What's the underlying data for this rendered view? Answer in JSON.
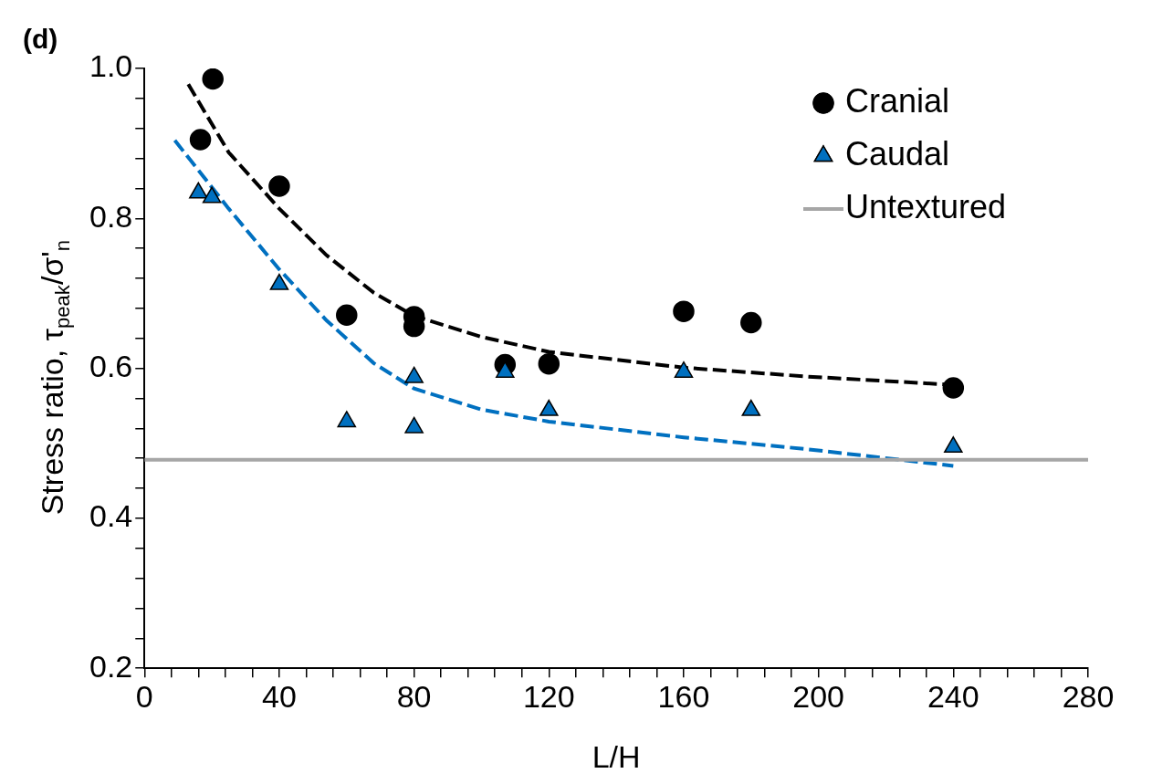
{
  "chart_data": {
    "type": "scatter",
    "title": "(d)",
    "xlabel": "L/H",
    "ylabel": "Stress ratio, τ$_{peak}$/σ'$_{n}$",
    "xlim": [
      0,
      280
    ],
    "xticks": [
      {
        "value": 0,
        "label": "0"
      },
      {
        "value": 8,
        "label": null
      },
      {
        "value": 16,
        "label": null
      },
      {
        "value": 24,
        "label": null
      },
      {
        "value": 32,
        "label": null
      },
      {
        "value": 40,
        "label": "40"
      },
      {
        "value": 48,
        "label": null
      },
      {
        "value": 56,
        "label": null
      },
      {
        "value": 64,
        "label": null
      },
      {
        "value": 72,
        "label": null
      },
      {
        "value": 80,
        "label": "80"
      },
      {
        "value": 88,
        "label": null
      },
      {
        "value": 96,
        "label": null
      },
      {
        "value": 104,
        "label": null
      },
      {
        "value": 112,
        "label": null
      },
      {
        "value": 120,
        "label": "120"
      },
      {
        "value": 128,
        "label": null
      },
      {
        "value": 136,
        "label": null
      },
      {
        "value": 144,
        "label": null
      },
      {
        "value": 152,
        "label": null
      },
      {
        "value": 160,
        "label": "160"
      },
      {
        "value": 168,
        "label": null
      },
      {
        "value": 176,
        "label": null
      },
      {
        "value": 184,
        "label": null
      },
      {
        "value": 192,
        "label": null
      },
      {
        "value": 200,
        "label": "200"
      },
      {
        "value": 208,
        "label": null
      },
      {
        "value": 216,
        "label": null
      },
      {
        "value": 224,
        "label": null
      },
      {
        "value": 232,
        "label": null
      },
      {
        "value": 240,
        "label": "240"
      },
      {
        "value": 248,
        "label": null
      },
      {
        "value": 256,
        "label": null
      },
      {
        "value": 264,
        "label": null
      },
      {
        "value": 272,
        "label": null
      },
      {
        "value": 280,
        "label": "280"
      }
    ],
    "ylim": [
      0.2,
      1.0
    ],
    "yticks": [
      {
        "value": 0.2,
        "label": "0.2"
      },
      {
        "value": 0.24,
        "label": null
      },
      {
        "value": 0.28,
        "label": null
      },
      {
        "value": 0.32,
        "label": null
      },
      {
        "value": 0.36,
        "label": null
      },
      {
        "value": 0.4,
        "label": "0.4"
      },
      {
        "value": 0.44,
        "label": null
      },
      {
        "value": 0.48,
        "label": null
      },
      {
        "value": 0.52,
        "label": null
      },
      {
        "value": 0.56,
        "label": null
      },
      {
        "value": 0.6,
        "label": "0.6"
      },
      {
        "value": 0.64,
        "label": null
      },
      {
        "value": 0.68,
        "label": null
      },
      {
        "value": 0.72,
        "label": null
      },
      {
        "value": 0.76,
        "label": null
      },
      {
        "value": 0.8,
        "label": "0.8"
      },
      {
        "value": 0.84,
        "label": null
      },
      {
        "value": 0.88,
        "label": null
      },
      {
        "value": 0.92,
        "label": null
      },
      {
        "value": 0.96,
        "label": null
      },
      {
        "value": 1.0,
        "label": "1.0"
      }
    ],
    "grid": false,
    "legend": "top right",
    "series": [
      {
        "name": "Cranial",
        "type": "scatter",
        "marker": "circle",
        "color": "#000000",
        "x": [
          16.6,
          20.3,
          40,
          60,
          80,
          80,
          107,
          120,
          160,
          180,
          240
        ],
        "values": [
          0.905,
          0.986,
          0.843,
          0.671,
          0.669,
          0.656,
          0.605,
          0.606,
          0.676,
          0.661,
          0.574
        ]
      },
      {
        "name": "Caudal",
        "type": "scatter",
        "marker": "triangle",
        "color": "#0070c0",
        "x": [
          16,
          20,
          40,
          60,
          80,
          80,
          107,
          120,
          160,
          180,
          240
        ],
        "values": [
          0.834,
          0.828,
          0.712,
          0.529,
          0.588,
          0.521,
          0.595,
          0.544,
          0.595,
          0.544,
          0.495
        ]
      },
      {
        "name": "Untextured",
        "type": "line",
        "marker": "none",
        "line_style": "solid",
        "color": "#a6a6a6",
        "x": [
          0,
          280
        ],
        "values": [
          0.478,
          0.478
        ]
      },
      {
        "type": "line",
        "marker": "none",
        "line_style": "dashed",
        "color": "#000000",
        "x": [
          13,
          25,
          40,
          54,
          68,
          80,
          100,
          120,
          160,
          197,
          240
        ],
        "values": [
          0.979,
          0.888,
          0.813,
          0.751,
          0.701,
          0.67,
          0.642,
          0.622,
          0.601,
          0.589,
          0.578
        ]
      },
      {
        "type": "line",
        "marker": "none",
        "line_style": "dashed",
        "color": "#0070c0",
        "x": [
          9,
          25,
          40,
          54,
          68,
          80,
          100,
          120,
          160,
          197,
          240
        ],
        "values": [
          0.904,
          0.813,
          0.732,
          0.664,
          0.607,
          0.573,
          0.545,
          0.529,
          0.508,
          0.492,
          0.47
        ]
      }
    ]
  }
}
